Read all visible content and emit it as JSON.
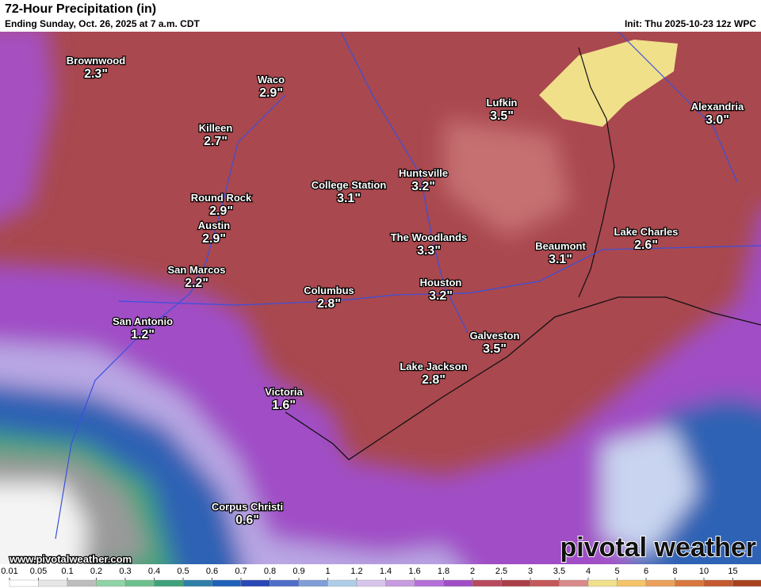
{
  "header": {
    "title": "72-Hour Precipitation (in)",
    "subtitle": "Ending Sunday, Oct. 26, 2025 at 7 a.m. CDT",
    "init": "Init: Thu 2025-10-23 12z WPC"
  },
  "cities": [
    {
      "name": "Brownwood",
      "amount": "2.3\""
    },
    {
      "name": "Waco",
      "amount": "2.9\""
    },
    {
      "name": "Killeen",
      "amount": "2.7\""
    },
    {
      "name": "Lufkin",
      "amount": "3.5\""
    },
    {
      "name": "Alexandria",
      "amount": "3.0\""
    },
    {
      "name": "Huntsville",
      "amount": "3.2\""
    },
    {
      "name": "College Station",
      "amount": "3.1\""
    },
    {
      "name": "Round Rock",
      "amount": "2.9\""
    },
    {
      "name": "Austin",
      "amount": "2.9\""
    },
    {
      "name": "The Woodlands",
      "amount": "3.3\""
    },
    {
      "name": "Beaumont",
      "amount": "3.1\""
    },
    {
      "name": "Lake Charles",
      "amount": "2.6\""
    },
    {
      "name": "San Marcos",
      "amount": "2.2\""
    },
    {
      "name": "Columbus",
      "amount": "2.8\""
    },
    {
      "name": "Houston",
      "amount": "3.2\""
    },
    {
      "name": "San Antonio",
      "amount": "1.2\""
    },
    {
      "name": "Galveston",
      "amount": "3.5\""
    },
    {
      "name": "Lake Jackson",
      "amount": "2.8\""
    },
    {
      "name": "Victoria",
      "amount": "1.6\""
    },
    {
      "name": "Corpus Christi",
      "amount": "0.6\""
    }
  ],
  "footer": {
    "url": "www.pivotalweather.com",
    "logo": "pivotal weather"
  },
  "legend": {
    "ticks": [
      0.01,
      0.05,
      0.1,
      0.2,
      0.3,
      0.4,
      0.5,
      0.6,
      0.7,
      0.8,
      0.9,
      1,
      1.2,
      1.4,
      1.6,
      1.8,
      2,
      2.5,
      3,
      3.5,
      4,
      5,
      6,
      8,
      10,
      15
    ],
    "colors": [
      "#ffffff",
      "#e6e6e6",
      "#bdbdbd",
      "#8fd3a6",
      "#6cc08e",
      "#3fa27a",
      "#2f7fa8",
      "#1f60b8",
      "#2a47b5",
      "#4f6ec8",
      "#7f9ed8",
      "#aecde8",
      "#d7c5ec",
      "#c79be0",
      "#b46fd8",
      "#a04ec6",
      "#b84a5e",
      "#a93f48",
      "#c4585a",
      "#d98a8a",
      "#f0e08a",
      "#f4c46a",
      "#eba05a",
      "#d8783e",
      "#c45a2e",
      "#a8421e"
    ]
  }
}
